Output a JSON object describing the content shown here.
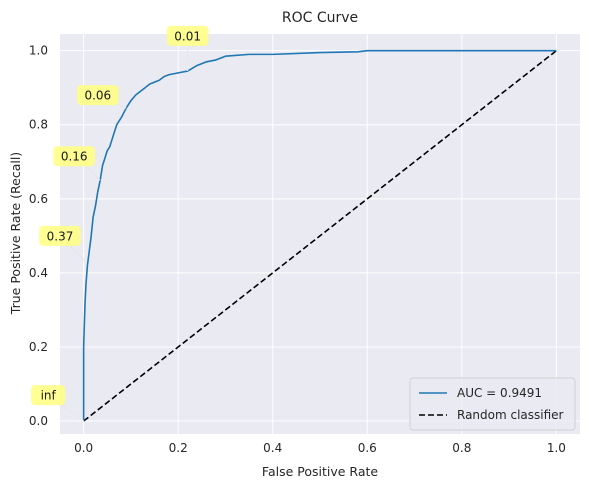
{
  "chart_data": {
    "type": "line",
    "title": "ROC Curve",
    "xlabel": "False Positive Rate",
    "ylabel": "True Positive Rate (Recall)",
    "xlim": [
      -0.05,
      1.05
    ],
    "ylim": [
      -0.035,
      1.045
    ],
    "xticks": [
      0.0,
      0.2,
      0.4,
      0.6,
      0.8,
      1.0
    ],
    "yticks": [
      0.0,
      0.2,
      0.4,
      0.6,
      0.8,
      1.0
    ],
    "grid": true,
    "legend_position": "lower-right",
    "series": [
      {
        "name": "AUC = 0.9491",
        "color": "#1f77b4",
        "style": "solid",
        "x": [
          0.0,
          0.0,
          0.003,
          0.005,
          0.008,
          0.012,
          0.016,
          0.02,
          0.025,
          0.03,
          0.035,
          0.04,
          0.045,
          0.05,
          0.055,
          0.06,
          0.07,
          0.08,
          0.09,
          0.1,
          0.11,
          0.12,
          0.13,
          0.14,
          0.15,
          0.16,
          0.17,
          0.18,
          0.2,
          0.22,
          0.24,
          0.25,
          0.26,
          0.28,
          0.3,
          0.35,
          0.4,
          0.5,
          0.58,
          0.6,
          0.7,
          0.8,
          0.9,
          1.0
        ],
        "y": [
          0.0,
          0.2,
          0.32,
          0.37,
          0.42,
          0.46,
          0.5,
          0.55,
          0.58,
          0.62,
          0.65,
          0.69,
          0.71,
          0.73,
          0.74,
          0.76,
          0.8,
          0.82,
          0.845,
          0.865,
          0.88,
          0.89,
          0.9,
          0.91,
          0.915,
          0.92,
          0.93,
          0.935,
          0.94,
          0.945,
          0.96,
          0.965,
          0.97,
          0.975,
          0.985,
          0.99,
          0.99,
          0.995,
          0.997,
          1.0,
          1.0,
          1.0,
          1.0,
          1.0
        ]
      },
      {
        "name": "Random classifier",
        "color": "#000000",
        "style": "dashed",
        "x": [
          0.0,
          1.0
        ],
        "y": [
          0.0,
          1.0
        ]
      }
    ],
    "annotations": [
      {
        "text": "0.01",
        "x": 0.22,
        "y": 0.945,
        "label_x": 0.22,
        "label_y": 1.04
      },
      {
        "text": "0.06",
        "x": 0.09,
        "y": 0.845,
        "label_x": 0.03,
        "label_y": 0.88
      },
      {
        "text": "0.16",
        "x": 0.035,
        "y": 0.65,
        "label_x": -0.02,
        "label_y": 0.715
      },
      {
        "text": "0.37",
        "x": 0.005,
        "y": 0.43,
        "label_x": -0.05,
        "label_y": 0.5
      },
      {
        "text": "inf",
        "x": 0.0,
        "y": 0.0,
        "label_x": -0.075,
        "label_y": 0.07
      }
    ]
  }
}
